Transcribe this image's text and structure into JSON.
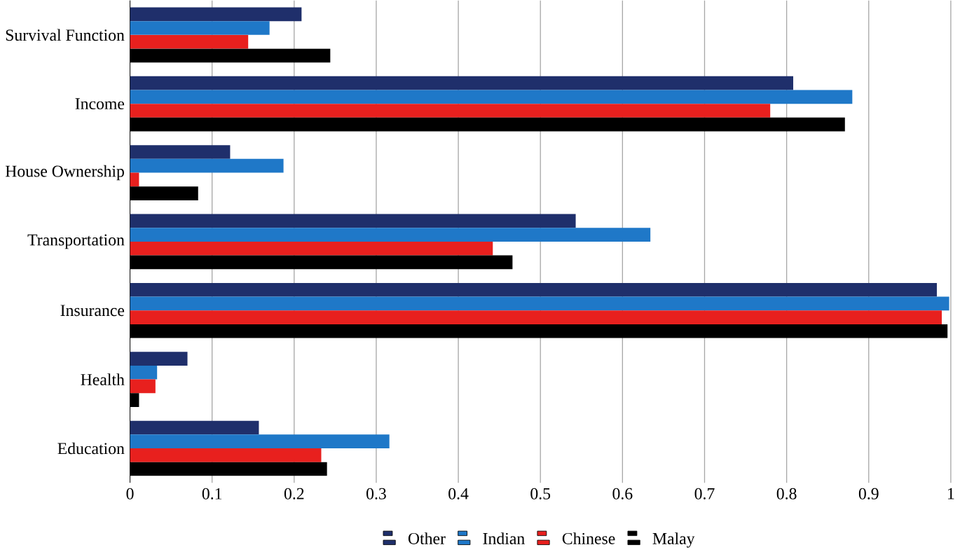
{
  "chart_data": {
    "type": "bar",
    "orientation": "horizontal",
    "categories": [
      "Survival Function",
      "Income",
      "House Ownership",
      "Transportation",
      "Insurance",
      "Health",
      "Education"
    ],
    "series": [
      {
        "name": "Other",
        "color": "#1f2f6b",
        "values": [
          0.209,
          0.808,
          0.122,
          0.543,
          0.983,
          0.07,
          0.157
        ]
      },
      {
        "name": "Indian",
        "color": "#1f78c8",
        "values": [
          0.17,
          0.88,
          0.187,
          0.634,
          0.998,
          0.033,
          0.316
        ]
      },
      {
        "name": "Chinese",
        "color": "#e8201e",
        "values": [
          0.144,
          0.78,
          0.011,
          0.442,
          0.989,
          0.031,
          0.233
        ]
      },
      {
        "name": "Malay",
        "color": "#000000",
        "values": [
          0.244,
          0.871,
          0.083,
          0.466,
          0.996,
          0.011,
          0.24
        ]
      }
    ],
    "xlim": [
      0,
      1
    ],
    "xticks": [
      0,
      0.1,
      0.2,
      0.3,
      0.4,
      0.5,
      0.6,
      0.7,
      0.8,
      0.9,
      1
    ],
    "grid": "x",
    "legend": "bottom"
  }
}
